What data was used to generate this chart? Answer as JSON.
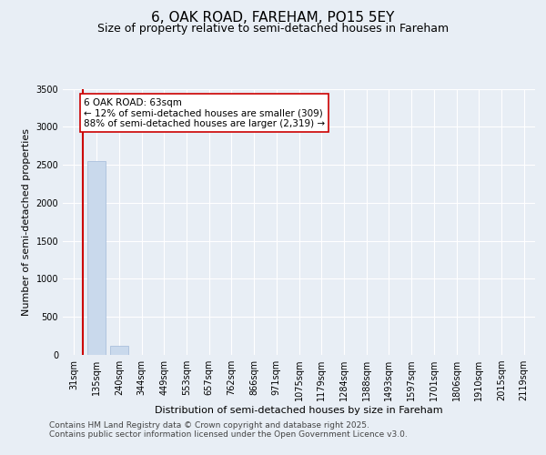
{
  "title_line1": "6, OAK ROAD, FAREHAM, PO15 5EY",
  "title_line2": "Size of property relative to semi-detached houses in Fareham",
  "xlabel": "Distribution of semi-detached houses by size in Fareham",
  "ylabel": "Number of semi-detached properties",
  "categories": [
    "31sqm",
    "135sqm",
    "240sqm",
    "344sqm",
    "449sqm",
    "553sqm",
    "657sqm",
    "762sqm",
    "866sqm",
    "971sqm",
    "1075sqm",
    "1179sqm",
    "1284sqm",
    "1388sqm",
    "1493sqm",
    "1597sqm",
    "1701sqm",
    "1806sqm",
    "1910sqm",
    "2015sqm",
    "2119sqm"
  ],
  "values": [
    0,
    2550,
    120,
    0,
    0,
    0,
    0,
    0,
    0,
    0,
    0,
    0,
    0,
    0,
    0,
    0,
    0,
    0,
    0,
    0,
    0
  ],
  "bar_color": "#c9d9ec",
  "bar_edgecolor": "#a0b8d8",
  "property_line_x": 0.38,
  "property_line_color": "#cc0000",
  "annotation_text": "6 OAK ROAD: 63sqm\n← 12% of semi-detached houses are smaller (309)\n88% of semi-detached houses are larger (2,319) →",
  "annotation_box_color": "#cc0000",
  "ylim": [
    0,
    3500
  ],
  "yticks": [
    0,
    500,
    1000,
    1500,
    2000,
    2500,
    3000,
    3500
  ],
  "background_color": "#e8eef5",
  "plot_background": "#e8eef5",
  "grid_color": "#ffffff",
  "footer_line1": "Contains HM Land Registry data © Crown copyright and database right 2025.",
  "footer_line2": "Contains public sector information licensed under the Open Government Licence v3.0.",
  "title_fontsize": 11,
  "subtitle_fontsize": 9,
  "tick_fontsize": 7,
  "ylabel_fontsize": 8,
  "xlabel_fontsize": 8,
  "footer_fontsize": 6.5,
  "annotation_fontsize": 7.5
}
